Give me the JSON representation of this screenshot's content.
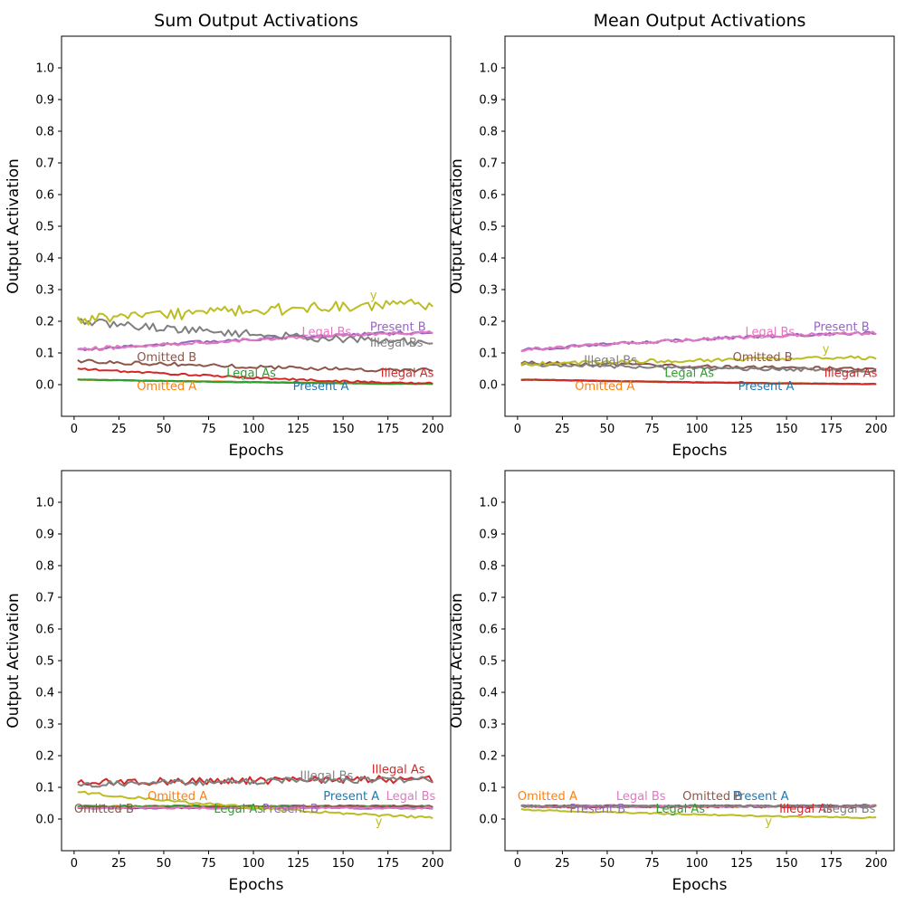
{
  "colors": {
    "Present A": "#1f77b4",
    "Omitted A": "#ff7f0e",
    "Legal As": "#2ca02c",
    "Illegal As": "#d62728",
    "Present B": "#9467bd",
    "Omitted B": "#8c564b",
    "Legal Bs": "#e377c2",
    "Illegal Bs": "#7f7f7f",
    "y": "#bcbd22"
  },
  "chart_data": [
    {
      "type": "line",
      "title": "Sum Output Activations",
      "xlabel": "Epochs",
      "ylabel": "Output Activation",
      "xlim": [
        -7,
        210
      ],
      "ylim": [
        -0.1,
        1.1
      ],
      "xticks": [
        0,
        25,
        50,
        75,
        100,
        125,
        150,
        175,
        200
      ],
      "yticks": [
        0.0,
        0.1,
        0.2,
        0.3,
        0.4,
        0.5,
        0.6,
        0.7,
        0.8,
        0.9,
        1.0
      ],
      "grid": false,
      "x_range": [
        2,
        200
      ],
      "series": [
        {
          "name": "Present A",
          "start": 0.016,
          "end": 0.003,
          "noise": 0.001
        },
        {
          "name": "Omitted A",
          "start": 0.016,
          "end": 0.003,
          "noise": 0.001
        },
        {
          "name": "Legal As",
          "start": 0.016,
          "end": 0.002,
          "noise": 0.001
        },
        {
          "name": "Illegal As",
          "start": 0.05,
          "end": 0.004,
          "noise": 0.003
        },
        {
          "name": "Present B",
          "start": 0.11,
          "end": 0.165,
          "noise": 0.005
        },
        {
          "name": "Omitted B",
          "start": 0.075,
          "end": 0.045,
          "noise": 0.006
        },
        {
          "name": "Legal Bs",
          "start": 0.11,
          "end": 0.163,
          "noise": 0.006
        },
        {
          "name": "Illegal Bs",
          "start": 0.2,
          "end": 0.134,
          "noise": 0.012
        },
        {
          "name": "y",
          "start": 0.205,
          "end": 0.252,
          "noise": 0.018
        }
      ],
      "labels": [
        {
          "text": "y",
          "x": 165,
          "y": 0.27,
          "series": "y"
        },
        {
          "text": "Present B",
          "x": 165,
          "y": 0.17,
          "series": "Present B"
        },
        {
          "text": "Legal Bs",
          "x": 127,
          "y": 0.155,
          "series": "Legal Bs"
        },
        {
          "text": "Illegal Bs",
          "x": 165,
          "y": 0.12,
          "series": "Illegal Bs"
        },
        {
          "text": "Omitted B",
          "x": 35,
          "y": 0.075,
          "series": "Omitted B"
        },
        {
          "text": "Legal As",
          "x": 85,
          "y": 0.025,
          "series": "Legal As"
        },
        {
          "text": "Illegal As",
          "x": 171,
          "y": 0.025,
          "series": "Illegal As"
        },
        {
          "text": "Omitted A",
          "x": 35,
          "y": -0.017,
          "series": "Omitted A"
        },
        {
          "text": "Present A",
          "x": 122,
          "y": -0.017,
          "series": "Present A"
        }
      ]
    },
    {
      "type": "line",
      "title": "Mean Output Activations",
      "xlabel": "Epochs",
      "ylabel": "Output Activation",
      "xlim": [
        -7,
        210
      ],
      "ylim": [
        -0.1,
        1.1
      ],
      "xticks": [
        0,
        25,
        50,
        75,
        100,
        125,
        150,
        175,
        200
      ],
      "yticks": [
        0.0,
        0.1,
        0.2,
        0.3,
        0.4,
        0.5,
        0.6,
        0.7,
        0.8,
        0.9,
        1.0
      ],
      "grid": false,
      "x_range": [
        2,
        200
      ],
      "series": [
        {
          "name": "Present A",
          "start": 0.016,
          "end": 0.002,
          "noise": 0.001
        },
        {
          "name": "Omitted A",
          "start": 0.016,
          "end": 0.002,
          "noise": 0.001
        },
        {
          "name": "Legal As",
          "start": 0.016,
          "end": 0.002,
          "noise": 0.001
        },
        {
          "name": "Illegal As",
          "start": 0.016,
          "end": 0.002,
          "noise": 0.001
        },
        {
          "name": "Present B",
          "start": 0.11,
          "end": 0.163,
          "noise": 0.005
        },
        {
          "name": "Omitted B",
          "start": 0.07,
          "end": 0.05,
          "noise": 0.005
        },
        {
          "name": "Legal Bs",
          "start": 0.11,
          "end": 0.162,
          "noise": 0.006
        },
        {
          "name": "Illegal Bs",
          "start": 0.065,
          "end": 0.045,
          "noise": 0.006
        },
        {
          "name": "y",
          "start": 0.065,
          "end": 0.085,
          "noise": 0.006
        }
      ],
      "labels": [
        {
          "text": "Present B",
          "x": 165,
          "y": 0.17,
          "series": "Present B"
        },
        {
          "text": "Legal Bs",
          "x": 127,
          "y": 0.155,
          "series": "Legal Bs"
        },
        {
          "text": "y",
          "x": 170,
          "y": 0.1,
          "series": "y"
        },
        {
          "text": "Omitted B",
          "x": 120,
          "y": 0.075,
          "series": "Omitted B"
        },
        {
          "text": "Illegal Bs",
          "x": 37,
          "y": 0.065,
          "series": "Illegal Bs"
        },
        {
          "text": "Legal As",
          "x": 82,
          "y": 0.025,
          "series": "Legal As"
        },
        {
          "text": "Illegal As",
          "x": 171,
          "y": 0.025,
          "series": "Illegal As"
        },
        {
          "text": "Omitted A",
          "x": 32,
          "y": -0.017,
          "series": "Omitted A"
        },
        {
          "text": "Present A",
          "x": 123,
          "y": -0.017,
          "series": "Present A"
        }
      ]
    },
    {
      "type": "line",
      "title": "",
      "xlabel": "Epochs",
      "ylabel": "Output Activation",
      "xlim": [
        -7,
        210
      ],
      "ylim": [
        -0.1,
        1.1
      ],
      "xticks": [
        0,
        25,
        50,
        75,
        100,
        125,
        150,
        175,
        200
      ],
      "yticks": [
        0.0,
        0.1,
        0.2,
        0.3,
        0.4,
        0.5,
        0.6,
        0.7,
        0.8,
        0.9,
        1.0
      ],
      "grid": false,
      "x_range": [
        2,
        200
      ],
      "series": [
        {
          "name": "Present A",
          "start": 0.04,
          "end": 0.04,
          "noise": 0.003
        },
        {
          "name": "Omitted A",
          "start": 0.04,
          "end": 0.04,
          "noise": 0.003
        },
        {
          "name": "Legal As",
          "start": 0.04,
          "end": 0.04,
          "noise": 0.003
        },
        {
          "name": "Illegal As",
          "start": 0.115,
          "end": 0.125,
          "noise": 0.012
        },
        {
          "name": "Present B",
          "start": 0.035,
          "end": 0.035,
          "noise": 0.003
        },
        {
          "name": "Omitted B",
          "start": 0.035,
          "end": 0.04,
          "noise": 0.004
        },
        {
          "name": "Legal Bs",
          "start": 0.035,
          "end": 0.035,
          "noise": 0.003
        },
        {
          "name": "Illegal Bs",
          "start": 0.11,
          "end": 0.125,
          "noise": 0.01
        },
        {
          "name": "y",
          "start": 0.085,
          "end": 0.006,
          "noise": 0.004
        }
      ],
      "labels": [
        {
          "text": "Illegal As",
          "x": 166,
          "y": 0.145,
          "series": "Illegal As"
        },
        {
          "text": "Illegal Bs",
          "x": 126,
          "y": 0.125,
          "series": "Illegal Bs"
        },
        {
          "text": "Omitted A",
          "x": 41,
          "y": 0.06,
          "series": "Omitted A"
        },
        {
          "text": "Present A",
          "x": 139,
          "y": 0.06,
          "series": "Present A"
        },
        {
          "text": "Legal Bs",
          "x": 174,
          "y": 0.06,
          "series": "Legal Bs"
        },
        {
          "text": "Omitted B",
          "x": 0,
          "y": 0.02,
          "series": "Omitted B"
        },
        {
          "text": "Legal As",
          "x": 78,
          "y": 0.02,
          "series": "Legal As"
        },
        {
          "text": "Present B",
          "x": 105,
          "y": 0.02,
          "series": "Present B"
        },
        {
          "text": "y",
          "x": 168,
          "y": -0.02,
          "series": "y"
        }
      ]
    },
    {
      "type": "line",
      "title": "",
      "xlabel": "Epochs",
      "ylabel": "Output Activation",
      "xlim": [
        -7,
        210
      ],
      "ylim": [
        -0.1,
        1.1
      ],
      "xticks": [
        0,
        25,
        50,
        75,
        100,
        125,
        150,
        175,
        200
      ],
      "yticks": [
        0.0,
        0.1,
        0.2,
        0.3,
        0.4,
        0.5,
        0.6,
        0.7,
        0.8,
        0.9,
        1.0
      ],
      "grid": false,
      "x_range": [
        2,
        200
      ],
      "series": [
        {
          "name": "Present A",
          "start": 0.04,
          "end": 0.04,
          "noise": 0.003
        },
        {
          "name": "Omitted A",
          "start": 0.04,
          "end": 0.04,
          "noise": 0.003
        },
        {
          "name": "Legal As",
          "start": 0.04,
          "end": 0.04,
          "noise": 0.003
        },
        {
          "name": "Illegal As",
          "start": 0.04,
          "end": 0.04,
          "noise": 0.004
        },
        {
          "name": "Present B",
          "start": 0.04,
          "end": 0.04,
          "noise": 0.003
        },
        {
          "name": "Omitted B",
          "start": 0.04,
          "end": 0.04,
          "noise": 0.004
        },
        {
          "name": "Legal Bs",
          "start": 0.04,
          "end": 0.04,
          "noise": 0.003
        },
        {
          "name": "Illegal Bs",
          "start": 0.04,
          "end": 0.04,
          "noise": 0.004
        },
        {
          "name": "y",
          "start": 0.03,
          "end": 0.004,
          "noise": 0.002
        }
      ],
      "labels": [
        {
          "text": "Omitted A",
          "x": 0,
          "y": 0.06,
          "series": "Omitted A"
        },
        {
          "text": "Legal Bs",
          "x": 55,
          "y": 0.06,
          "series": "Legal Bs"
        },
        {
          "text": "Omitted B",
          "x": 92,
          "y": 0.06,
          "series": "Omitted B"
        },
        {
          "text": "Present A",
          "x": 120,
          "y": 0.06,
          "series": "Present A"
        },
        {
          "text": "Present B",
          "x": 29,
          "y": 0.02,
          "series": "Present B"
        },
        {
          "text": "Legal As",
          "x": 77,
          "y": 0.02,
          "series": "Legal As"
        },
        {
          "text": "Illegal As",
          "x": 146,
          "y": 0.02,
          "series": "Illegal As"
        },
        {
          "text": "Illegal Bs",
          "x": 170,
          "y": 0.02,
          "series": "Illegal Bs"
        },
        {
          "text": "y",
          "x": 138,
          "y": -0.02,
          "series": "y"
        }
      ]
    }
  ]
}
